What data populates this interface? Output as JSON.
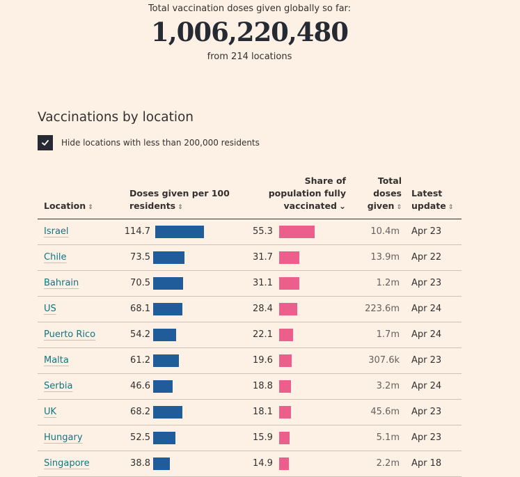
{
  "summary": {
    "lead": "Total vaccination doses given globally so far:",
    "total": "1,006,220,480",
    "from": "from 214 locations"
  },
  "section_title": "Vaccinations by location",
  "filter": {
    "checked": true,
    "label": "Hide locations with less than 200,000 residents"
  },
  "colors": {
    "background": "#fdf1e6",
    "doses_bar": "#1f5c99",
    "share_bar": "#ec5e8c",
    "link": "#0d7680"
  },
  "table": {
    "headers": {
      "location": "Location",
      "doses_line1": "Doses given per 100",
      "doses_line2": "residents",
      "share_line1": "Share of",
      "share_line2": "population fully",
      "share_line3": "vaccinated",
      "total_line1": "Total",
      "total_line2": "doses",
      "total_line3": "given",
      "update_line1": "Latest",
      "update_line2": "update",
      "sort_icon": "⇕",
      "sorted_desc_icon": "⌄"
    }
  },
  "chart_data": {
    "type": "table",
    "title": "Vaccinations by location",
    "columns": [
      "Location",
      "Doses given per 100 residents",
      "Share of population fully vaccinated",
      "Total doses given",
      "Latest update"
    ],
    "sorted_by": "Share of population fully vaccinated",
    "sort_order": "descending",
    "doses_max": 114.7,
    "share_max": 55.3,
    "rows": [
      {
        "location": "Israel",
        "doses_per_100": 114.7,
        "share_fully_vaccinated": 55.3,
        "total_doses": "10.4m",
        "latest_update": "Apr 23"
      },
      {
        "location": "Chile",
        "doses_per_100": 73.5,
        "share_fully_vaccinated": 31.7,
        "total_doses": "13.9m",
        "latest_update": "Apr 22"
      },
      {
        "location": "Bahrain",
        "doses_per_100": 70.5,
        "share_fully_vaccinated": 31.1,
        "total_doses": "1.2m",
        "latest_update": "Apr 23"
      },
      {
        "location": "US",
        "doses_per_100": 68.1,
        "share_fully_vaccinated": 28.4,
        "total_doses": "223.6m",
        "latest_update": "Apr 24"
      },
      {
        "location": "Puerto Rico",
        "doses_per_100": 54.2,
        "share_fully_vaccinated": 22.1,
        "total_doses": "1.7m",
        "latest_update": "Apr 24"
      },
      {
        "location": "Malta",
        "doses_per_100": 61.2,
        "share_fully_vaccinated": 19.6,
        "total_doses": "307.6k",
        "latest_update": "Apr 23"
      },
      {
        "location": "Serbia",
        "doses_per_100": 46.6,
        "share_fully_vaccinated": 18.8,
        "total_doses": "3.2m",
        "latest_update": "Apr 24"
      },
      {
        "location": "UK",
        "doses_per_100": 68.2,
        "share_fully_vaccinated": 18.1,
        "total_doses": "45.6m",
        "latest_update": "Apr 23"
      },
      {
        "location": "Hungary",
        "doses_per_100": 52.5,
        "share_fully_vaccinated": 15.9,
        "total_doses": "5.1m",
        "latest_update": "Apr 23"
      },
      {
        "location": "Singapore",
        "doses_per_100": 38.8,
        "share_fully_vaccinated": 14.9,
        "total_doses": "2.2m",
        "latest_update": "Apr 18"
      }
    ]
  }
}
